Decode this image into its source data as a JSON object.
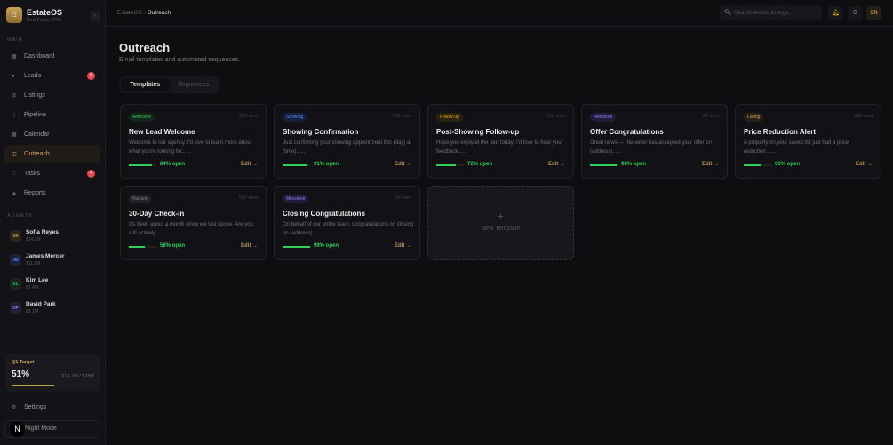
{
  "app": {
    "name": "EstateOS",
    "subtitle": "Real Estate CRM"
  },
  "sidebar": {
    "main_label": "MAIN",
    "items": [
      {
        "label": "Dashboard",
        "icon": "dashboard-icon",
        "glyph": "▦"
      },
      {
        "label": "Leads",
        "icon": "leads-icon",
        "glyph": "●",
        "badge": "8"
      },
      {
        "label": "Listings",
        "icon": "listings-icon",
        "glyph": "⊞"
      },
      {
        "label": "Pipeline",
        "icon": "pipeline-icon",
        "glyph": "⋮⋮⋮"
      },
      {
        "label": "Calendar",
        "icon": "calendar-icon",
        "glyph": "▦"
      },
      {
        "label": "Outreach",
        "icon": "outreach-icon",
        "glyph": "◫",
        "active": true
      },
      {
        "label": "Tasks",
        "icon": "tasks-icon",
        "glyph": "□",
        "badge": "4"
      },
      {
        "label": "Reports",
        "icon": "reports-icon",
        "glyph": "▲"
      }
    ],
    "agents_label": "AGENTS",
    "agents": [
      {
        "initials": "SR",
        "name": "Sofia Reyes",
        "amount": "$14.2M",
        "color": "#c9a055",
        "bg": "#2a2419"
      },
      {
        "initials": "JM",
        "name": "James Mercer",
        "amount": "$11.8M",
        "color": "#4c8dff",
        "bg": "#18223a"
      },
      {
        "initials": "KL",
        "name": "Kim Lee",
        "amount": "$7.4M",
        "color": "#30d158",
        "bg": "#15281b"
      },
      {
        "initials": "DP",
        "name": "David Park",
        "amount": "$3.1M",
        "color": "#9b7bff",
        "bg": "#221c35"
      }
    ],
    "target": {
      "label": "Q1 Target",
      "percent": "51%",
      "progress": 0.51,
      "amount": "$14.2M / $28M"
    },
    "settings": "Settings",
    "theme_toggle": "Night Mode",
    "theme_icon": "N"
  },
  "topbar": {
    "breadcrumb_root": "EstateOS",
    "breadcrumb_sep": "›",
    "breadcrumb_current": "Outreach",
    "search_placeholder": "Search leads, listings...",
    "avatar": "SR"
  },
  "page": {
    "title": "Outreach",
    "subtitle": "Email templates and automated sequences.",
    "tabs": [
      "Templates",
      "Sequences"
    ]
  },
  "templates": [
    {
      "tag": "Welcome",
      "tag_color": "#30d158",
      "tag_bg": "#14261a",
      "sent": "320 sent",
      "title": "New Lead Welcome",
      "desc": "Welcome to our agency. I'd love to learn more about what you're looking for......",
      "open_rate": 84,
      "open": "84% open",
      "edit": "Edit →"
    },
    {
      "tag": "Showing",
      "tag_color": "#4c8dff",
      "tag_bg": "#16203a",
      "sent": "215 sent",
      "title": "Showing Confirmation",
      "desc": "Just confirming your showing appointment this (day) at (time)......",
      "open_rate": 91,
      "open": "91% open",
      "edit": "Edit →"
    },
    {
      "tag": "Follow-up",
      "tag_color": "#e0a800",
      "tag_bg": "#2a220f",
      "sent": "198 sent",
      "title": "Post-Showing Follow-up",
      "desc": "Hope you enjoyed the tour today! I'd love to hear your feedback......",
      "open_rate": 72,
      "open": "72% open",
      "edit": "Edit →"
    },
    {
      "tag": "Milestone",
      "tag_color": "#9b7bff",
      "tag_bg": "#211c38",
      "sent": "87 sent",
      "title": "Offer Congratulations",
      "desc": "Great news — the seller has accepted your offer on (address)......",
      "open_rate": 98,
      "open": "98% open",
      "edit": "Edit →"
    },
    {
      "tag": "Listing",
      "tag_color": "#c9a055",
      "tag_bg": "#262018",
      "sent": "410 sent",
      "title": "Price Reduction Alert",
      "desc": "A property on your saved list just had a price reduction......",
      "open_rate": 66,
      "open": "66% open",
      "edit": "Edit →"
    },
    {
      "tag": "Nurture",
      "tag_color": "#888",
      "tag_bg": "#222227",
      "sent": "560 sent",
      "title": "30-Day Check-in",
      "desc": "It's been about a month since we last spoke. Are you still actively......",
      "open_rate": 58,
      "open": "58% open",
      "edit": "Edit →"
    },
    {
      "tag": "Milestone",
      "tag_color": "#9b7bff",
      "tag_bg": "#211c38",
      "sent": "64 sent",
      "title": "Closing Congratulations",
      "desc": "On behalf of our entire team, congratulations on closing on (address)......",
      "open_rate": 99,
      "open": "99% open",
      "edit": "Edit →"
    }
  ],
  "new_template": {
    "icon": "+",
    "label": "New Template"
  }
}
